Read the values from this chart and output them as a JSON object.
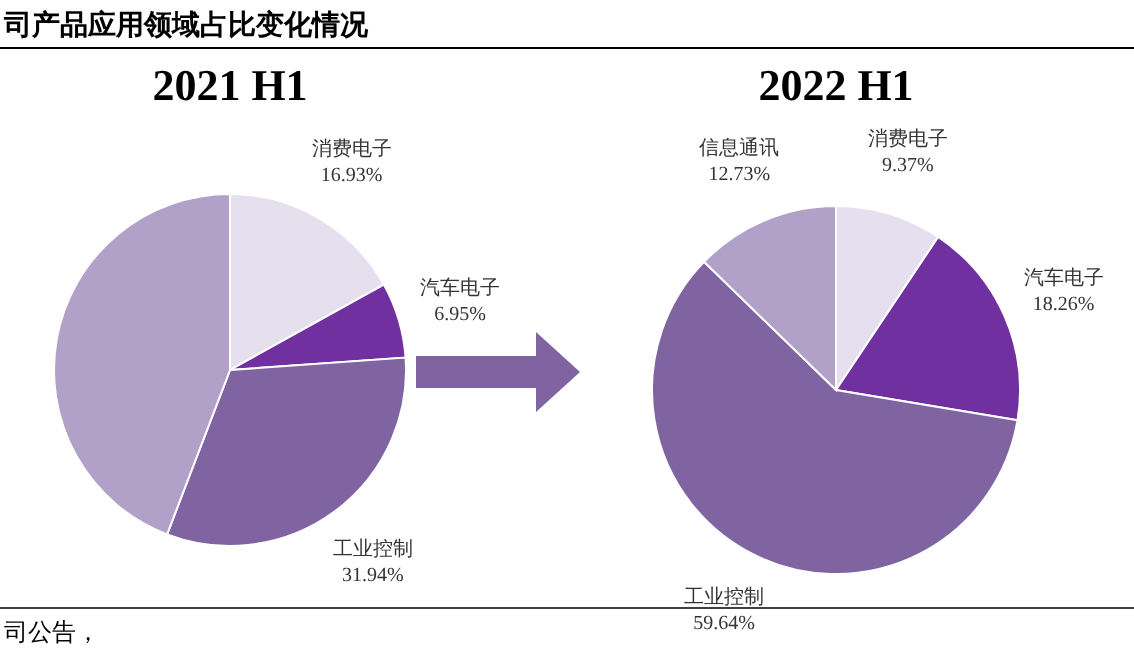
{
  "chart_data": [
    {
      "type": "pie",
      "title": "2021 H1",
      "annotations": [
        "司产品应用领域占比变化情况",
        "司公告，"
      ],
      "categories": [
        "消费电子",
        "汽车电子",
        "工业控制",
        null
      ],
      "values": [
        16.93,
        6.95,
        31.94,
        44.18
      ],
      "value_labels": [
        "16.93%",
        "6.95%",
        "31.94%",
        null
      ],
      "colors": [
        "#e6e0ee",
        "#7030a0",
        "#8064a2",
        "#b1a0c7"
      ]
    },
    {
      "type": "pie",
      "title": "2022 H1",
      "categories": [
        "消费电子",
        "汽车电子",
        "工业控制",
        "信息通讯"
      ],
      "values": [
        9.37,
        18.26,
        59.64,
        12.73
      ],
      "value_labels": [
        "9.37%",
        "18.26%",
        "59.64%",
        "12.73%"
      ],
      "colors": [
        "#e6e0ee",
        "#7030a0",
        "#8064a2",
        "#b1a0c7"
      ]
    }
  ]
}
